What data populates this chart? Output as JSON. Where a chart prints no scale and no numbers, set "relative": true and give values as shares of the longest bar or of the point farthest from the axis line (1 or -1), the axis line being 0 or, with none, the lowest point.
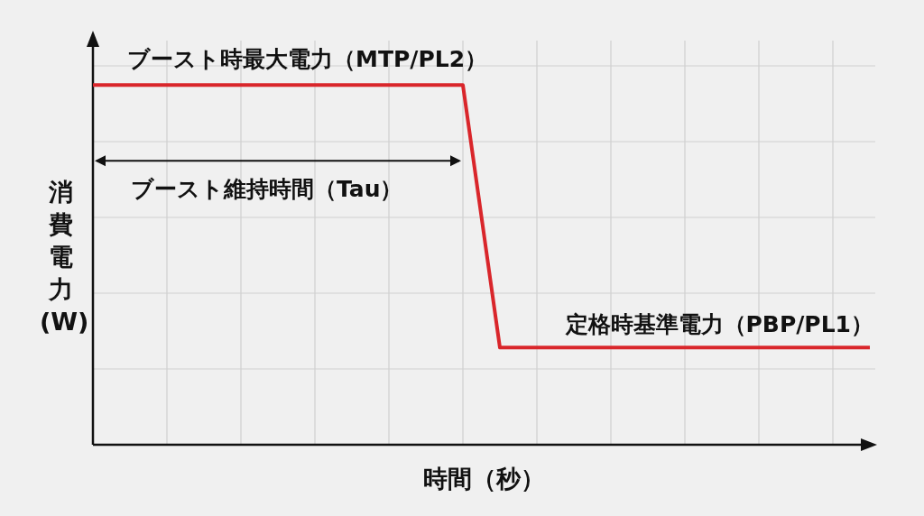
{
  "chart_data": {
    "type": "line",
    "relative": true,
    "grid": true,
    "line_style": "solid",
    "xlabel": "時間（秒）",
    "ylabel": "消費電力(W)",
    "categories": [
      null,
      null,
      null,
      null,
      null,
      null,
      null,
      null,
      null,
      null,
      null,
      null,
      null,
      null,
      null,
      null,
      null,
      null,
      null,
      null,
      null,
      null
    ],
    "series": [
      {
        "color": "#d9262b",
        "values": [
          1,
          1,
          1,
          1,
          1,
          1,
          1,
          1,
          1,
          1,
          1,
          0.27,
          0.27,
          0.27,
          0.27,
          0.27,
          0.27,
          0.27,
          0.27,
          0.27,
          0.27,
          0.27
        ]
      }
    ],
    "annotations": [
      {
        "text": "ブースト時最大電力（MTP/PL2）"
      },
      {
        "text": "ブースト維持時間（Tau）"
      },
      {
        "text": "定格時基準電力（PBP/PL1）"
      }
    ]
  }
}
